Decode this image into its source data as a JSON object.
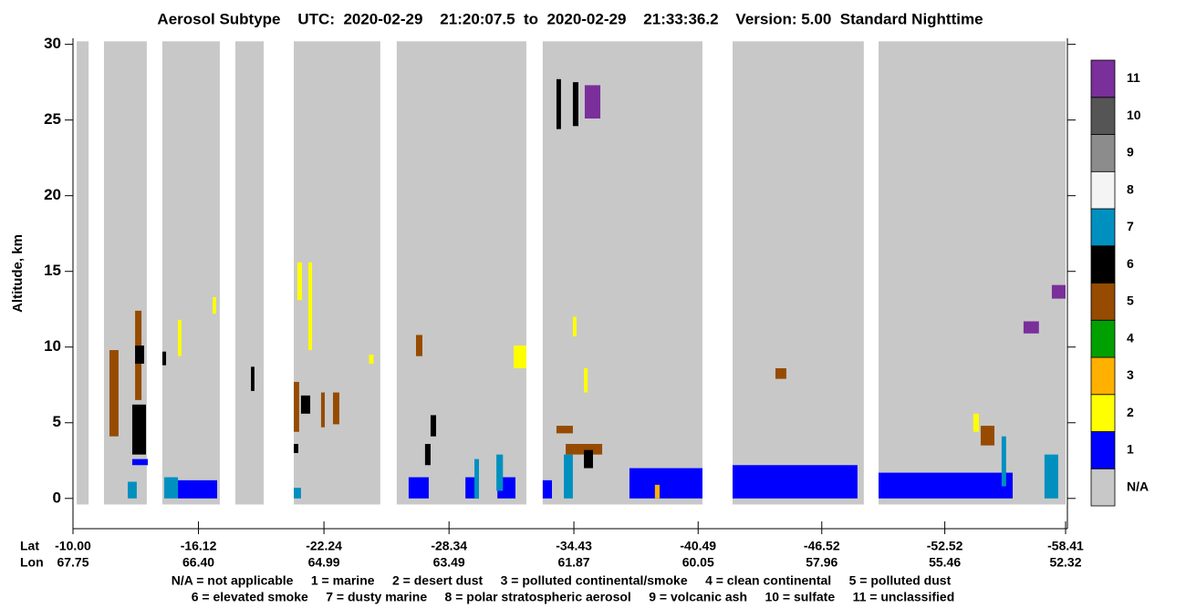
{
  "chart_data": {
    "type": "curtain",
    "title": "Aerosol Subtype    UTC:  2020-02-29    21:20:07.5  to  2020-02-29    21:33:36.2    Version: 5.00  Standard Nighttime",
    "y_label": "Altitude, km",
    "lat_label": "Lat",
    "lon_label": "Lon",
    "xlim": [
      -10,
      -58.41
    ],
    "xticks": [
      {
        "value": -10,
        "label": "-10.00"
      },
      {
        "value": -16.12,
        "label": "-16.12"
      },
      {
        "value": -22.24,
        "label": "-22.24"
      },
      {
        "value": -28.34,
        "label": "-28.34"
      },
      {
        "value": -34.43,
        "label": "-34.43"
      },
      {
        "value": -40.49,
        "label": "-40.49"
      },
      {
        "value": -46.52,
        "label": "-46.52"
      },
      {
        "value": -52.52,
        "label": "-52.52"
      },
      {
        "value": -58.41,
        "label": "-58.41"
      }
    ],
    "lon_labels": [
      "67.75",
      "66.40",
      "64.99",
      "63.49",
      "61.87",
      "60.05",
      "57.96",
      "55.46",
      "52.32"
    ],
    "ylim": [
      -2,
      30.4
    ],
    "yticks": [
      0,
      5,
      10,
      15,
      20,
      25,
      30
    ],
    "classes": [
      {
        "label": "N/A",
        "color": "#c8c8c8"
      },
      {
        "label": "1",
        "color": "#0000ff"
      },
      {
        "label": "2",
        "color": "#ffff00"
      },
      {
        "label": "3",
        "color": "#ffb000"
      },
      {
        "label": "4",
        "color": "#00a000"
      },
      {
        "label": "5",
        "color": "#964b00"
      },
      {
        "label": "6",
        "color": "#000000"
      },
      {
        "label": "7",
        "color": "#0090c0"
      },
      {
        "label": "8",
        "color": "#f4f4f4"
      },
      {
        "label": "9",
        "color": "#8c8c8c"
      },
      {
        "label": "10",
        "color": "#555555"
      },
      {
        "label": "11",
        "color": "#7a2f9a"
      }
    ],
    "legend_lines": [
      "N/A = not applicable     1 = marine     2 = desert dust     3 = polluted continental/smoke     4 = clean continental     5 = polluted dust",
      "6 = elevated smoke     7 = dusty marine     8 = polar stratospheric aerosol     9 = volcanic ash     10 = sulfate     11 = unclassified"
    ],
    "features": [
      [
        -10.18,
        -10.76,
        -0.4,
        30.2,
        0
      ],
      [
        -11.51,
        -13.6,
        -0.4,
        30.2,
        0
      ],
      [
        -14.36,
        -17.16,
        -0.4,
        30.2,
        0
      ],
      [
        -17.92,
        -19.3,
        -0.4,
        30.2,
        0
      ],
      [
        -20.77,
        -24.99,
        -0.4,
        30.2,
        0
      ],
      [
        -25.79,
        -32.11,
        -0.4,
        30.2,
        0
      ],
      [
        -32.91,
        -40.7,
        -0.4,
        30.2,
        0
      ],
      [
        -42.17,
        -48.57,
        -0.4,
        30.2,
        0
      ],
      [
        -49.29,
        -58.41,
        -0.4,
        30.2,
        0
      ],
      [
        -33.58,
        -33.8,
        24.4,
        27.7,
        6
      ],
      [
        -34.38,
        -34.65,
        24.6,
        27.5,
        6
      ],
      [
        -34.96,
        -35.72,
        25.1,
        27.3,
        11
      ],
      [
        -57.74,
        -58.41,
        13.2,
        14.1,
        11
      ],
      [
        -56.36,
        -57.11,
        10.9,
        11.7,
        11
      ],
      [
        -44.26,
        -44.79,
        7.9,
        8.6,
        5
      ],
      [
        -31.49,
        -32.11,
        8.6,
        10.1,
        2
      ],
      [
        -26.73,
        -27.04,
        9.4,
        10.8,
        5
      ],
      [
        -20.94,
        -21.17,
        13.1,
        15.6,
        2
      ],
      [
        -21.48,
        -21.66,
        9.8,
        15.6,
        2
      ],
      [
        -13.03,
        -13.34,
        6.5,
        12.4,
        5
      ],
      [
        -12.89,
        -13.56,
        2.9,
        6.2,
        6
      ],
      [
        -13.03,
        -13.47,
        8.9,
        10.1,
        6
      ],
      [
        -12.89,
        -13.65,
        2.2,
        2.6,
        1
      ],
      [
        -11.78,
        -12.22,
        4.1,
        9.8,
        5
      ],
      [
        -12.67,
        -13.11,
        0,
        1.1,
        7
      ],
      [
        -14.45,
        -15.12,
        0,
        1.4,
        7
      ],
      [
        -15.12,
        -17.03,
        0,
        1.2,
        1
      ],
      [
        -15.12,
        -15.29,
        9.4,
        11.8,
        2
      ],
      [
        -14.36,
        -14.54,
        8.8,
        9.7,
        6
      ],
      [
        -16.81,
        -16.98,
        12.2,
        13.3,
        2
      ],
      [
        -18.68,
        -18.85,
        7.1,
        8.7,
        6
      ],
      [
        -20.77,
        -21.12,
        0,
        0.7,
        7
      ],
      [
        -20.77,
        -21.03,
        4.4,
        7.7,
        5
      ],
      [
        -22.1,
        -22.28,
        4.7,
        7.0,
        5
      ],
      [
        -22.68,
        -22.99,
        4.9,
        7.0,
        5
      ],
      [
        -21.12,
        -21.57,
        5.6,
        6.8,
        6
      ],
      [
        -20.77,
        -20.99,
        3.0,
        3.6,
        6
      ],
      [
        -24.44,
        -24.66,
        8.9,
        9.5,
        2
      ],
      [
        -27.44,
        -27.71,
        4.1,
        5.5,
        6
      ],
      [
        -27.17,
        -27.44,
        2.2,
        3.6,
        6
      ],
      [
        -26.37,
        -27.35,
        0,
        1.4,
        1
      ],
      [
        -29.14,
        -29.8,
        0,
        1.4,
        1
      ],
      [
        -30.7,
        -31.58,
        0,
        1.4,
        1
      ],
      [
        -29.58,
        -29.8,
        0,
        2.6,
        7
      ],
      [
        -30.65,
        -30.97,
        0.5,
        2.9,
        7
      ],
      [
        -32.91,
        -33.36,
        0,
        1.2,
        1
      ],
      [
        -33.94,
        -34.38,
        0,
        2.9,
        7
      ],
      [
        -37.14,
        -40.7,
        0,
        2.0,
        1
      ],
      [
        -33.58,
        -34.38,
        4.3,
        4.8,
        5
      ],
      [
        -34.03,
        -35.81,
        2.9,
        3.6,
        5
      ],
      [
        -34.92,
        -35.36,
        2.0,
        3.2,
        6
      ],
      [
        -34.38,
        -34.56,
        10.7,
        12.0,
        2
      ],
      [
        -34.92,
        -35.1,
        7.0,
        8.6,
        2
      ],
      [
        -38.38,
        -38.61,
        0,
        0.9,
        3
      ],
      [
        -42.17,
        -48.26,
        0,
        2.2,
        1
      ],
      [
        -49.29,
        -55.83,
        0,
        1.7,
        1
      ],
      [
        -54.27,
        -54.94,
        3.5,
        4.8,
        5
      ],
      [
        -55.29,
        -55.51,
        0.8,
        4.1,
        7
      ],
      [
        -57.38,
        -58.05,
        0,
        2.9,
        7
      ],
      [
        -53.91,
        -54.18,
        4.4,
        5.6,
        2
      ]
    ]
  }
}
